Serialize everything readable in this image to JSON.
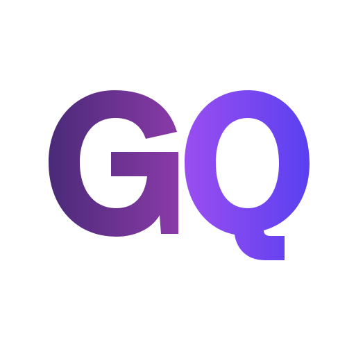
{
  "logo": {
    "text": "GQ",
    "letters": [
      "G",
      "Q"
    ],
    "colors": {
      "background": "#ffffff",
      "gradient_g_start": "#4a2a78",
      "gradient_g_end": "#8a3aa8",
      "gradient_q_start": "#9a4ef0",
      "gradient_q_end": "#5a40f0"
    }
  }
}
